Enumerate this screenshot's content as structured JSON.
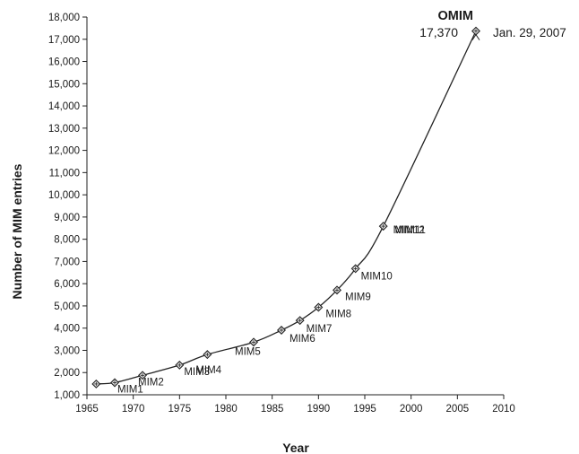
{
  "chart_data": {
    "type": "line",
    "xlabel": "Year",
    "ylabel": "Number of MIM entries",
    "xlim": [
      1965,
      2010
    ],
    "ylim": [
      1000,
      18000
    ],
    "x_ticks": [
      "1965",
      "1970",
      "1975",
      "1980",
      "1985",
      "1990",
      "1995",
      "2000",
      "2005",
      "2010"
    ],
    "y_ticks": [
      "1,000",
      "2,000",
      "3,000",
      "4,000",
      "5,000",
      "6,000",
      "7,000",
      "8,000",
      "9,000",
      "10,000",
      "11,000",
      "12,000",
      "13,000",
      "14,000",
      "15,000",
      "16,000",
      "17,000",
      "18,000"
    ],
    "grid": false,
    "marker": "diamond",
    "points": [
      {
        "x": 1966,
        "y": 1487,
        "label": ""
      },
      {
        "x": 1968,
        "y": 1545,
        "label": "MIM1"
      },
      {
        "x": 1971,
        "y": 1876,
        "label": "MIM2"
      },
      {
        "x": 1975,
        "y": 2336,
        "label": "MIM3"
      },
      {
        "x": 1978,
        "y": 2811,
        "label": "MIM4"
      },
      {
        "x": 1983,
        "y": 3368,
        "label": "MIM5"
      },
      {
        "x": 1986,
        "y": 3907,
        "label": "MIM6"
      },
      {
        "x": 1988,
        "y": 4344,
        "label": "MIM7"
      },
      {
        "x": 1990,
        "y": 4937,
        "label": "MIM8"
      },
      {
        "x": 1992,
        "y": 5710,
        "label": "MIM9"
      },
      {
        "x": 1994,
        "y": 6678,
        "label": "MIM10"
      },
      {
        "x": 1997,
        "y": 8587,
        "label": "MIM11"
      },
      {
        "x": 2007,
        "y": 17370,
        "label": "MIM12"
      }
    ],
    "annotation": {
      "title": "OMIM",
      "value": "17,370",
      "date": "Jan. 29, 2007"
    }
  }
}
